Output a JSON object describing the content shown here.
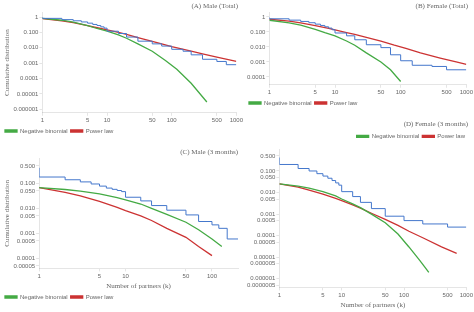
{
  "chart_data": [
    {
      "type": "line",
      "title": "(A) Male (Total)",
      "ylabel": "Cumulative distribution",
      "log": true,
      "grid": false,
      "legend": "lower left",
      "xlim": [
        1,
        1000
      ],
      "ylim": [
        6e-07,
        2.0
      ],
      "xticks": [
        1,
        5,
        10,
        50,
        100,
        500,
        1000
      ],
      "yticks": [
        1e-06,
        1e-05,
        0.0001,
        0.001,
        {
          "value": 0.01,
          "label": "0.010"
        },
        {
          "value": 0.1,
          "label": "0.100"
        },
        1
      ],
      "series": [
        {
          "color": "#4477cc",
          "line_style": "step",
          "x": [
            1,
            2,
            3,
            4,
            5,
            6,
            7,
            8,
            9,
            10,
            15,
            20,
            30,
            50,
            70,
            100,
            150,
            200,
            300,
            500,
            700,
            1000
          ],
          "values": [
            1.0,
            0.82,
            0.68,
            0.57,
            0.48,
            0.4,
            0.33,
            0.28,
            0.23,
            0.19,
            0.12,
            0.085,
            0.05,
            0.027,
            0.018,
            0.013,
            0.008,
            0.006,
            0.0035,
            0.0018,
            0.0013,
            0.0008
          ]
        },
        {
          "name": "Negative binomial",
          "color": "#44aa44",
          "x": [
            1,
            2,
            3,
            5,
            7,
            10,
            15,
            20,
            30,
            50,
            80,
            120,
            200,
            350
          ],
          "values": [
            0.82,
            0.62,
            0.47,
            0.28,
            0.18,
            0.12,
            0.07,
            0.042,
            0.018,
            0.006,
            0.0015,
            0.0004,
            5e-05,
            3e-06
          ]
        },
        {
          "name": "Power law",
          "color": "#cc3333",
          "x": [
            1,
            2,
            3,
            5,
            8,
            10,
            15,
            20,
            30,
            50,
            70,
            100,
            200,
            300,
            500,
            1000
          ],
          "values": [
            0.78,
            0.56,
            0.43,
            0.28,
            0.18,
            0.145,
            0.1,
            0.075,
            0.046,
            0.026,
            0.018,
            0.012,
            0.006,
            0.004,
            0.0025,
            0.0013
          ]
        }
      ]
    },
    {
      "type": "line",
      "title": "(B) Female (Total)",
      "log": true,
      "grid": false,
      "legend": "lower left",
      "xlim": [
        1,
        1000
      ],
      "ylim": [
        3e-05,
        2.0
      ],
      "xticks": [
        1,
        5,
        10,
        50,
        100,
        500,
        1000
      ],
      "yticks": [
        0.0001,
        0.001,
        {
          "value": 0.01,
          "label": "0.010"
        },
        {
          "value": 0.1,
          "label": "0.100"
        },
        1
      ],
      "series": [
        {
          "color": "#4477cc",
          "line_style": "step",
          "x": [
            1,
            2,
            3,
            4,
            5,
            6,
            7,
            8,
            9,
            10,
            15,
            20,
            30,
            50,
            70,
            100,
            150,
            300,
            500,
            1000
          ],
          "values": [
            0.92,
            0.75,
            0.61,
            0.5,
            0.41,
            0.33,
            0.27,
            0.22,
            0.18,
            0.14,
            0.085,
            0.055,
            0.03,
            0.014,
            0.009,
            0.003,
            0.0012,
            0.0006,
            0.0005,
            0.0003
          ]
        },
        {
          "name": "Negative binomial",
          "color": "#44aa44",
          "x": [
            1,
            2,
            3,
            5,
            7,
            10,
            15,
            20,
            30,
            50,
            70,
            100
          ],
          "values": [
            0.6,
            0.4,
            0.28,
            0.15,
            0.09,
            0.055,
            0.025,
            0.013,
            0.004,
            0.001,
            0.0003,
            5e-05
          ]
        },
        {
          "name": "Power law",
          "color": "#cc3333",
          "x": [
            1,
            2,
            3,
            5,
            8,
            10,
            15,
            20,
            30,
            50,
            80,
            120,
            200,
            400,
            700,
            1000
          ],
          "values": [
            0.7,
            0.52,
            0.4,
            0.26,
            0.17,
            0.135,
            0.09,
            0.068,
            0.043,
            0.024,
            0.013,
            0.008,
            0.004,
            0.0018,
            0.001,
            0.0007
          ]
        }
      ]
    },
    {
      "type": "line",
      "title": "(C) Male (3 months)",
      "xlabel": "Number of partners (k)",
      "ylabel": "Cumulative distribution",
      "log": true,
      "grid": false,
      "legend": "lower left",
      "xlim": [
        1,
        200
      ],
      "ylim": [
        4e-05,
        1.0
      ],
      "xticks": [
        1,
        5,
        10,
        50,
        100
      ],
      "yticks": [
        5e-05,
        0.0001,
        0.0005,
        0.001,
        0.005,
        {
          "value": 0.01,
          "label": "0.010"
        },
        {
          "value": 0.05,
          "label": "0.050"
        },
        {
          "value": 0.1,
          "label": "0.100"
        },
        {
          "value": 0.5,
          "label": "0.500"
        }
      ],
      "series": [
        {
          "color": "#4477cc",
          "line_style": "step",
          "x": [
            1,
            2,
            3,
            4,
            5,
            6,
            7,
            8,
            9,
            10,
            15,
            20,
            30,
            50,
            70,
            100,
            120,
            150,
            200
          ],
          "values": [
            0.42,
            0.18,
            0.14,
            0.115,
            0.095,
            0.078,
            0.065,
            0.058,
            0.052,
            0.047,
            0.028,
            0.02,
            0.013,
            0.0085,
            0.0055,
            0.003,
            0.0022,
            0.0016,
            0.0006
          ]
        },
        {
          "name": "Negative binomial",
          "color": "#44aa44",
          "x": [
            1,
            2,
            3,
            5,
            8,
            10,
            15,
            20,
            30,
            50,
            70,
            100,
            130
          ],
          "values": [
            0.068,
            0.057,
            0.049,
            0.038,
            0.027,
            0.022,
            0.015,
            0.01,
            0.0058,
            0.0028,
            0.0014,
            0.0006,
            0.0003
          ]
        },
        {
          "name": "Power law",
          "color": "#cc3333",
          "x": [
            1,
            2,
            3,
            5,
            8,
            10,
            15,
            20,
            30,
            50,
            70,
            100
          ],
          "values": [
            0.068,
            0.044,
            0.032,
            0.019,
            0.011,
            0.0082,
            0.005,
            0.0033,
            0.0016,
            0.0007,
            0.0003,
            0.00013
          ]
        }
      ]
    },
    {
      "type": "line",
      "title": "(D) Female (3 months)",
      "xlabel": "Number of partners (k)",
      "log": true,
      "grid": false,
      "legend": "upper right",
      "xlim": [
        1,
        1000
      ],
      "ylim": [
        4e-07,
        1.0
      ],
      "xticks": [
        1,
        5,
        10,
        50,
        100,
        500,
        1000
      ],
      "yticks": [
        {
          "value": 5e-07,
          "label": "0.0000005"
        },
        1e-06,
        5e-06,
        1e-05,
        5e-05,
        0.0001,
        0.0005,
        0.001,
        0.005,
        {
          "value": 0.01,
          "label": "0.010"
        },
        {
          "value": 0.05,
          "label": "0.050"
        },
        {
          "value": 0.1,
          "label": "0.100"
        },
        {
          "value": 0.5,
          "label": "0.500"
        }
      ],
      "series": [
        {
          "color": "#4477cc",
          "line_style": "step",
          "x": [
            1,
            2,
            3,
            4,
            5,
            6,
            7,
            8,
            9,
            10,
            15,
            20,
            30,
            50,
            100,
            200,
            500,
            1000
          ],
          "values": [
            0.42,
            0.2,
            0.13,
            0.1,
            0.075,
            0.058,
            0.046,
            0.036,
            0.028,
            0.022,
            0.011,
            0.0065,
            0.0035,
            0.0018,
            0.0008,
            0.0005,
            0.00035,
            0.00025
          ]
        },
        {
          "name": "Negative binomial",
          "color": "#44aa44",
          "x": [
            1,
            2,
            3,
            5,
            8,
            10,
            15,
            20,
            30,
            50,
            80,
            120,
            180,
            250
          ],
          "values": [
            0.025,
            0.02,
            0.016,
            0.011,
            0.007,
            0.005,
            0.003,
            0.002,
            0.001,
            0.0004,
            0.00012,
            3e-05,
            7e-06,
            2e-06
          ]
        },
        {
          "name": "Power law",
          "color": "#cc3333",
          "x": [
            1,
            2,
            3,
            5,
            8,
            10,
            15,
            20,
            30,
            50,
            80,
            120,
            200,
            400,
            700
          ],
          "values": [
            0.025,
            0.018,
            0.013,
            0.0085,
            0.0053,
            0.0042,
            0.0027,
            0.0019,
            0.0011,
            0.00057,
            0.0003,
            0.00016,
            8e-05,
            3e-05,
            1.5e-05
          ]
        }
      ]
    }
  ]
}
